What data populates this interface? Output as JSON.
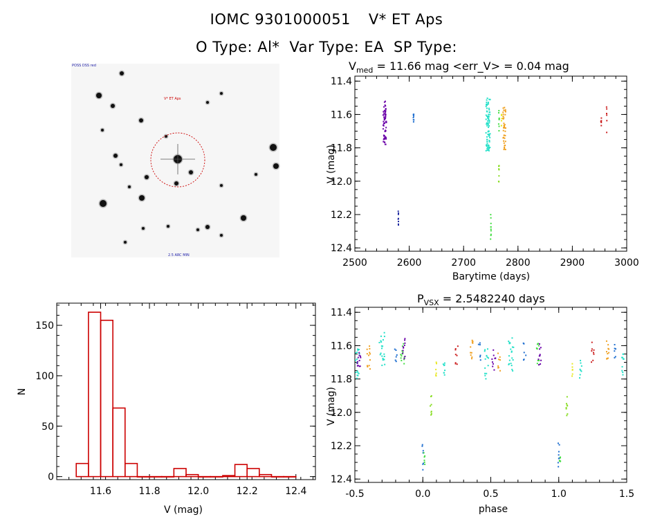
{
  "header": {
    "object_id": "IOMC 9301000051",
    "object_name": "V* ET Aps",
    "otype_label": "O Type: Al*",
    "vartype_label": "Var Type: EA",
    "sptype_label": "SP Type:"
  },
  "finder_image": {
    "target_label": "V* ET Aps",
    "corner_label": "POSS DSS red",
    "bottom_label": "2.5 ARC MIN",
    "colors": {
      "circle": "#cc0000",
      "label": "#cc0000",
      "corner": "#2222aa"
    }
  },
  "chart_data": [
    {
      "type": "scatter",
      "id": "light-curve",
      "title_main": "V",
      "title_sub": "med",
      "title_rest": " = 11.66 mag <err_V> = 0.04 mag",
      "xlabel": "Barytime (days)",
      "ylabel": "V (mag)",
      "xlim": [
        2500,
        3000
      ],
      "ylim": [
        12.42,
        11.37
      ],
      "y_inverted": true,
      "xticks": [
        "2500",
        "2600",
        "2700",
        "2800",
        "2900",
        "3000"
      ],
      "yticks": [
        "11.4",
        "11.6",
        "11.8",
        "12.0",
        "12.2",
        "12.4"
      ],
      "groups": [
        {
          "x": 2555,
          "dx": 6,
          "y": [
            11.52,
            11.78
          ],
          "color": "#6a00a8",
          "n": 60
        },
        {
          "x": 2580,
          "dx": 1,
          "y": [
            12.18,
            12.27
          ],
          "color": "#1f2aa0",
          "n": 8
        },
        {
          "x": 2608,
          "dx": 1,
          "y": [
            11.57,
            11.66
          ],
          "color": "#1f6fd0",
          "n": 8
        },
        {
          "x": 2745,
          "dx": 8,
          "y": [
            11.5,
            11.82
          ],
          "color": "#22e0c8",
          "n": 80
        },
        {
          "x": 2750,
          "dx": 1,
          "y": [
            12.2,
            12.35
          ],
          "color": "#44dd44",
          "n": 10
        },
        {
          "x": 2765,
          "dx": 1,
          "y": [
            11.57,
            11.7
          ],
          "color": "#44dd44",
          "n": 8
        },
        {
          "x": 2765,
          "dx": 1,
          "y": [
            11.9,
            12.02
          ],
          "color": "#88dd22",
          "n": 8
        },
        {
          "x": 2775,
          "dx": 5,
          "y": [
            11.55,
            11.82
          ],
          "color": "#f0a020",
          "n": 40
        },
        {
          "x": 2770,
          "dx": 1,
          "y": [
            11.6,
            11.68
          ],
          "color": "#e8e820",
          "n": 6
        },
        {
          "x": 2953,
          "dx": 1,
          "y": [
            11.6,
            11.7
          ],
          "color": "#cc2222",
          "n": 6
        },
        {
          "x": 2963,
          "dx": 1,
          "y": [
            11.55,
            11.72
          ],
          "color": "#cc2222",
          "n": 6
        }
      ]
    },
    {
      "type": "bar",
      "id": "histogram",
      "xlabel": "V (mag)",
      "ylabel": "N",
      "xlim": [
        11.42,
        12.48
      ],
      "ylim": [
        -3,
        172
      ],
      "xticks": [
        "11.6",
        "11.8",
        "12.0",
        "12.2",
        "12.4"
      ],
      "yticks": [
        "0",
        "50",
        "100",
        "150"
      ],
      "bin_width": 0.05,
      "bin_starts": [
        11.5,
        11.55,
        11.6,
        11.65,
        11.7,
        11.75,
        11.8,
        11.85,
        11.9,
        11.95,
        12.0,
        12.05,
        12.1,
        12.15,
        12.2,
        12.25,
        12.3,
        12.35
      ],
      "counts": [
        13,
        163,
        155,
        68,
        13,
        0,
        0,
        0,
        8,
        2,
        0,
        0,
        1,
        12,
        8,
        2,
        0,
        0
      ],
      "color": "#cc0000"
    },
    {
      "type": "scatter",
      "id": "phase-curve",
      "title_main": "P",
      "title_sub": "VSX",
      "title_rest": " = 2.5482240 days",
      "xlabel": "phase",
      "ylabel": "V (mag)",
      "xlim": [
        -0.5,
        1.5
      ],
      "ylim": [
        12.42,
        11.37
      ],
      "y_inverted": true,
      "xticks": [
        "-0.5",
        "0.0",
        "0.5",
        "1.0",
        "1.5"
      ],
      "yticks": [
        "11.4",
        "11.6",
        "11.8",
        "12.0",
        "12.2",
        "12.4"
      ],
      "groups": [
        {
          "x": -0.48,
          "dx": 0.03,
          "y": [
            11.62,
            11.8
          ],
          "color": "#22e0c8",
          "n": 18
        },
        {
          "x": -0.47,
          "dx": 0.03,
          "y": [
            11.64,
            11.74
          ],
          "color": "#6a00a8",
          "n": 12
        },
        {
          "x": -0.4,
          "dx": 0.03,
          "y": [
            11.6,
            11.74
          ],
          "color": "#f0a020",
          "n": 12
        },
        {
          "x": -0.3,
          "dx": 0.04,
          "y": [
            11.52,
            11.72
          ],
          "color": "#22e0c8",
          "n": 20
        },
        {
          "x": -0.2,
          "dx": 0.02,
          "y": [
            11.58,
            11.7
          ],
          "color": "#1f6fd0",
          "n": 6
        },
        {
          "x": -0.15,
          "dx": 0.03,
          "y": [
            11.58,
            11.72
          ],
          "color": "#44dd44",
          "n": 12
        },
        {
          "x": -0.14,
          "dx": 0.02,
          "y": [
            11.55,
            11.7
          ],
          "color": "#6a00a8",
          "n": 10
        },
        {
          "x": 0.0,
          "dx": 0.01,
          "y": [
            12.18,
            12.35
          ],
          "color": "#1f6fd0",
          "n": 8
        },
        {
          "x": 0.01,
          "dx": 0.01,
          "y": [
            12.24,
            12.34
          ],
          "color": "#44dd44",
          "n": 6
        },
        {
          "x": 0.06,
          "dx": 0.01,
          "y": [
            11.9,
            12.03
          ],
          "color": "#88dd22",
          "n": 8
        },
        {
          "x": 0.1,
          "dx": 0.01,
          "y": [
            11.68,
            11.8
          ],
          "color": "#e8e820",
          "n": 6
        },
        {
          "x": 0.16,
          "dx": 0.02,
          "y": [
            11.68,
            11.82
          ],
          "color": "#22e0c8",
          "n": 8
        },
        {
          "x": 0.25,
          "dx": 0.02,
          "y": [
            11.58,
            11.72
          ],
          "color": "#cc2222",
          "n": 8
        },
        {
          "x": 0.36,
          "dx": 0.02,
          "y": [
            11.56,
            11.7
          ],
          "color": "#f0a020",
          "n": 10
        },
        {
          "x": 0.42,
          "dx": 0.02,
          "y": [
            11.58,
            11.7
          ],
          "color": "#1f6fd0",
          "n": 6
        },
        {
          "x": 0.47,
          "dx": 0.03,
          "y": [
            11.62,
            11.82
          ],
          "color": "#22e0c8",
          "n": 14
        },
        {
          "x": 0.52,
          "dx": 0.03,
          "y": [
            11.62,
            11.76
          ],
          "color": "#6a00a8",
          "n": 10
        },
        {
          "x": 0.56,
          "dx": 0.02,
          "y": [
            11.64,
            11.78
          ],
          "color": "#f0a020",
          "n": 8
        },
        {
          "x": 0.65,
          "dx": 0.04,
          "y": [
            11.55,
            11.76
          ],
          "color": "#22e0c8",
          "n": 20
        },
        {
          "x": 0.75,
          "dx": 0.02,
          "y": [
            11.58,
            11.7
          ],
          "color": "#1f6fd0",
          "n": 6
        },
        {
          "x": 0.84,
          "dx": 0.03,
          "y": [
            11.58,
            11.72
          ],
          "color": "#44dd44",
          "n": 10
        },
        {
          "x": 0.86,
          "dx": 0.02,
          "y": [
            11.56,
            11.72
          ],
          "color": "#6a00a8",
          "n": 10
        },
        {
          "x": 1.0,
          "dx": 0.01,
          "y": [
            12.18,
            12.33
          ],
          "color": "#1f6fd0",
          "n": 8
        },
        {
          "x": 1.01,
          "dx": 0.01,
          "y": [
            12.22,
            12.33
          ],
          "color": "#44dd44",
          "n": 6
        },
        {
          "x": 1.06,
          "dx": 0.01,
          "y": [
            11.9,
            12.03
          ],
          "color": "#88dd22",
          "n": 8
        },
        {
          "x": 1.1,
          "dx": 0.01,
          "y": [
            11.68,
            11.8
          ],
          "color": "#e8e820",
          "n": 6
        },
        {
          "x": 1.16,
          "dx": 0.02,
          "y": [
            11.68,
            11.8
          ],
          "color": "#22e0c8",
          "n": 8
        },
        {
          "x": 1.25,
          "dx": 0.02,
          "y": [
            11.58,
            11.72
          ],
          "color": "#cc2222",
          "n": 8
        },
        {
          "x": 1.36,
          "dx": 0.02,
          "y": [
            11.56,
            11.7
          ],
          "color": "#f0a020",
          "n": 10
        },
        {
          "x": 1.42,
          "dx": 0.02,
          "y": [
            11.58,
            11.68
          ],
          "color": "#1f6fd0",
          "n": 6
        },
        {
          "x": 1.47,
          "dx": 0.02,
          "y": [
            11.64,
            11.78
          ],
          "color": "#22e0c8",
          "n": 10
        }
      ]
    }
  ]
}
